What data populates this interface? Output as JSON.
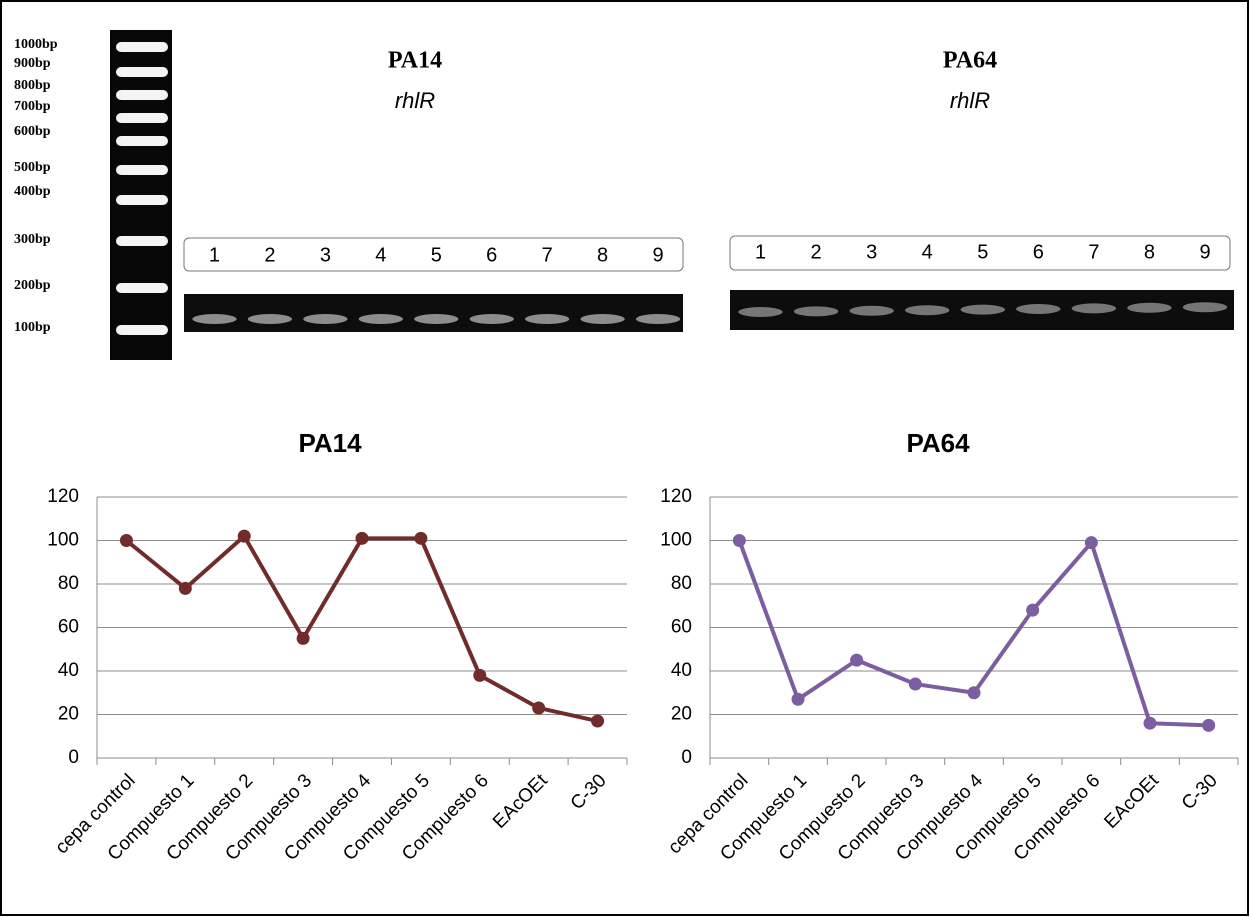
{
  "ladder": {
    "labels": [
      "1000bp",
      "900bp",
      "800bp",
      "700bp",
      "600bp",
      "500bp",
      "400bp",
      "300bp",
      "200bp",
      "100bp"
    ]
  },
  "gels": [
    {
      "title": "PA14",
      "gene": "rhlR",
      "lanes": [
        "1",
        "2",
        "3",
        "4",
        "5",
        "6",
        "7",
        "8",
        "9"
      ]
    },
    {
      "title": "PA64",
      "gene": "rhlR",
      "lanes": [
        "1",
        "2",
        "3",
        "4",
        "5",
        "6",
        "7",
        "8",
        "9"
      ]
    }
  ],
  "chart_data": [
    {
      "type": "line",
      "title": "PA14",
      "categories": [
        "cepa control",
        "Compuesto 1",
        "Compuesto 2",
        "Compuesto 3",
        "Compuesto 4",
        "Compuesto 5",
        "Compuesto 6",
        "EAcOEt",
        "C-30"
      ],
      "values": [
        100,
        78,
        102,
        55,
        101,
        101,
        38,
        23,
        17
      ],
      "color": "#722b2b",
      "ylim": [
        0,
        120
      ],
      "yticks": [
        0,
        20,
        40,
        60,
        80,
        100,
        120
      ],
      "grid": true
    },
    {
      "type": "line",
      "title": "PA64",
      "categories": [
        "cepa control",
        "Compuesto 1",
        "Compuesto 2",
        "Compuesto 3",
        "Compuesto 4",
        "Compuesto 5",
        "Compuesto 6",
        "EAcOEt",
        "C-30"
      ],
      "values": [
        100,
        27,
        45,
        34,
        30,
        68,
        99,
        16,
        15
      ],
      "color": "#7b5ea0",
      "ylim": [
        0,
        120
      ],
      "yticks": [
        0,
        20,
        40,
        60,
        80,
        100,
        120
      ],
      "grid": true
    }
  ]
}
